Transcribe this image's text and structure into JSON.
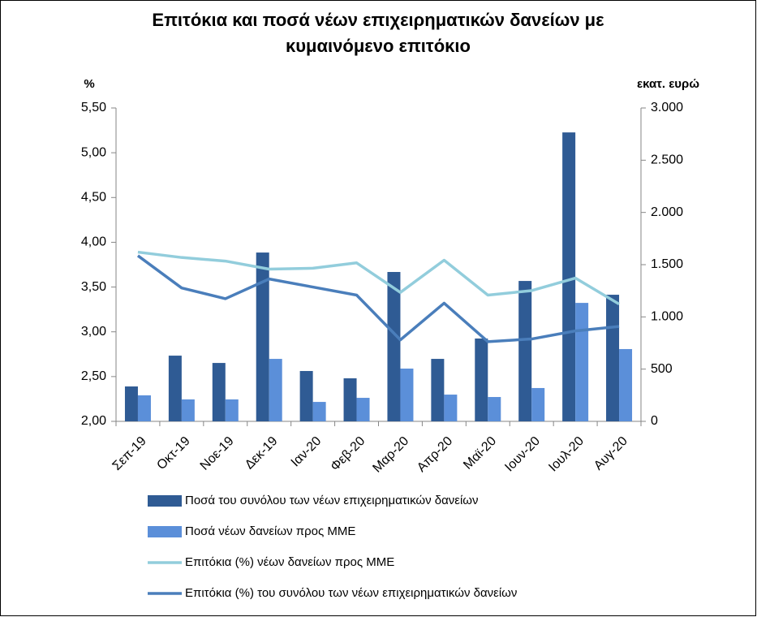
{
  "chart_data": {
    "type": "bar-line",
    "title": [
      "Επιτόκια και ποσά νέων επιχειρηματικών δανείων με",
      "κυμαινόμενο επιτόκιο"
    ],
    "y_label": "%",
    "y2_label": "εκατ. ευρώ",
    "categories": [
      "Σεπ-19",
      "Οκτ-19",
      "Νοε-19",
      "Δεκ-19",
      "Ιαν-20",
      "Φεβ-20",
      "Μαρ-20",
      "Απρ-20",
      "Μαϊ-20",
      "Ιουν-20",
      "Ιουλ-20",
      "Αυγ-20"
    ],
    "ylim": [
      2,
      5.5
    ],
    "yticks": [
      {
        "value": 2,
        "label": "2,00"
      },
      {
        "value": 2.5,
        "label": "2,50"
      },
      {
        "value": 3,
        "label": "3,00"
      },
      {
        "value": 3.5,
        "label": "3,50"
      },
      {
        "value": 4,
        "label": "4,00"
      },
      {
        "value": 4.5,
        "label": "4,50"
      },
      {
        "value": 5,
        "label": "5,00"
      },
      {
        "value": 5.5,
        "label": "5,50"
      }
    ],
    "y2lim": [
      0,
      3000
    ],
    "y2ticks": [
      0,
      500,
      {
        "value": 1000,
        "label": "1.000"
      },
      {
        "value": 1500,
        "label": "1.500"
      },
      {
        "value": 2000,
        "label": "2.000"
      },
      {
        "value": 2500,
        "label": "2.500"
      },
      {
        "value": 3000,
        "label": "3.000"
      }
    ],
    "series": [
      {
        "name": "Ποσά του συνόλου των νέων επιχειρηματικών δανείων",
        "type": "bar",
        "axis": "y2",
        "color": "#2f5b94",
        "values": [
          334,
          629,
          559,
          1616,
          482,
          412,
          1430,
          598,
          793,
          1344,
          2766,
          1212
        ]
      },
      {
        "name": "Ποσά νέων δανείων προς ΜΜΕ",
        "type": "bar",
        "axis": "y2",
        "color": "#5b8fd9",
        "values": [
          249,
          210,
          210,
          598,
          186,
          225,
          505,
          256,
          233,
          319,
          1134,
          692
        ]
      },
      {
        "name": "Επιτόκια (%) νέων δανείων προς ΜΜΕ",
        "type": "line",
        "color": "#92cddc",
        "values": [
          3.89,
          3.83,
          3.79,
          3.7,
          3.71,
          3.77,
          3.44,
          3.8,
          3.41,
          3.46,
          3.6,
          3.31
        ]
      },
      {
        "name": "Επιτόκια (%) του συνόλου των νέων επιχειρηματικών δανείων",
        "type": "line",
        "color": "#4a7ebb",
        "values": [
          3.85,
          3.49,
          3.37,
          3.59,
          3.5,
          3.41,
          2.91,
          3.32,
          2.89,
          2.92,
          3.01,
          3.06
        ]
      }
    ]
  }
}
